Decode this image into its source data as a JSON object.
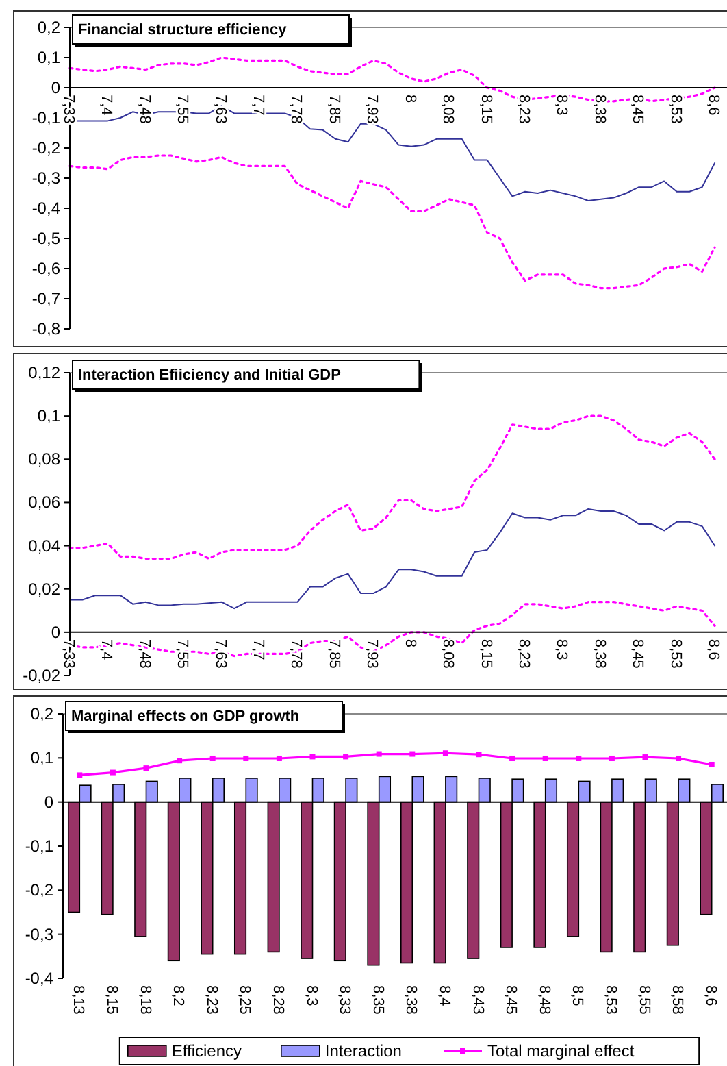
{
  "chart_data": [
    {
      "type": "line",
      "title": "Financial structure efficiency",
      "categories": [
        "7,33",
        null,
        null,
        "7,4",
        null,
        null,
        "7,48",
        null,
        null,
        "7,55",
        null,
        null,
        "7,63",
        null,
        null,
        "7,7",
        null,
        null,
        "7,78",
        null,
        null,
        "7,85",
        null,
        null,
        "7,93",
        null,
        null,
        "8",
        null,
        null,
        "8,08",
        null,
        null,
        "8,15",
        null,
        null,
        "8,23",
        null,
        null,
        "8,3",
        null,
        null,
        "8,38",
        null,
        null,
        "8,45",
        null,
        null,
        "8,53",
        null,
        null,
        "8,6"
      ],
      "ylim": [
        -0.8,
        0.2
      ],
      "yticks": [
        {
          "value": -0.8,
          "label": "-0,8"
        },
        {
          "value": -0.7,
          "label": "-0,7"
        },
        {
          "value": -0.6,
          "label": "-0,6"
        },
        {
          "value": -0.5,
          "label": "-0,5"
        },
        {
          "value": -0.4,
          "label": "-0,4"
        },
        {
          "value": -0.3,
          "label": "-0,3"
        },
        {
          "value": -0.2,
          "label": "-0,2"
        },
        {
          "value": -0.1,
          "label": "-0,1"
        },
        {
          "value": 0,
          "label": "0"
        },
        {
          "value": 0.1,
          "label": "0,1"
        },
        {
          "value": 0.2,
          "label": "0,2"
        }
      ],
      "series": [
        {
          "color": "#ff00ff",
          "line_style": "dotted",
          "values": [
            0.065,
            0.06,
            0.055,
            0.06,
            0.07,
            0.065,
            0.06,
            0.075,
            0.08,
            0.08,
            0.075,
            0.085,
            0.1,
            0.095,
            0.09,
            0.09,
            0.09,
            0.09,
            0.07,
            0.055,
            0.05,
            0.045,
            0.045,
            0.07,
            0.09,
            0.08,
            0.05,
            0.03,
            0.02,
            0.03,
            0.05,
            0.06,
            0.04,
            0.0,
            -0.01,
            -0.03,
            -0.04,
            -0.035,
            -0.03,
            -0.025,
            -0.03,
            -0.04,
            -0.045,
            -0.045,
            -0.04,
            -0.035,
            -0.045,
            -0.04,
            -0.035,
            -0.03,
            -0.02,
            0.0
          ]
        },
        {
          "color": "#333399",
          "line_style": "solid",
          "values": [
            -0.11,
            -0.11,
            -0.11,
            -0.11,
            -0.1,
            -0.08,
            -0.09,
            -0.08,
            -0.08,
            -0.08,
            -0.085,
            -0.085,
            -0.06,
            -0.085,
            -0.085,
            -0.085,
            -0.085,
            -0.085,
            -0.1,
            -0.137,
            -0.14,
            -0.17,
            -0.18,
            -0.12,
            -0.12,
            -0.14,
            -0.19,
            -0.195,
            -0.19,
            -0.17,
            -0.17,
            -0.17,
            -0.24,
            -0.24,
            -0.3,
            -0.36,
            -0.345,
            -0.35,
            -0.34,
            -0.35,
            -0.36,
            -0.375,
            -0.37,
            -0.365,
            -0.35,
            -0.33,
            -0.33,
            -0.31,
            -0.345,
            -0.345,
            -0.33,
            -0.25
          ]
        },
        {
          "color": "#ff00ff",
          "line_style": "dotted",
          "values": [
            -0.26,
            -0.265,
            -0.265,
            -0.27,
            -0.24,
            -0.23,
            -0.23,
            -0.225,
            -0.225,
            -0.235,
            -0.245,
            -0.24,
            -0.23,
            -0.25,
            -0.26,
            -0.26,
            -0.26,
            -0.26,
            -0.32,
            -0.34,
            -0.36,
            -0.38,
            -0.4,
            -0.31,
            -0.32,
            -0.33,
            -0.37,
            -0.41,
            -0.41,
            -0.39,
            -0.37,
            -0.38,
            -0.39,
            -0.48,
            -0.5,
            -0.58,
            -0.64,
            -0.62,
            -0.62,
            -0.62,
            -0.65,
            -0.655,
            -0.665,
            -0.665,
            -0.66,
            -0.655,
            -0.63,
            -0.6,
            -0.595,
            -0.585,
            -0.61,
            -0.53
          ]
        }
      ]
    },
    {
      "type": "line",
      "title": "Interaction Efiiciency and Initial GDP",
      "categories": [
        "7,33",
        null,
        null,
        "7,4",
        null,
        null,
        "7,48",
        null,
        null,
        "7,55",
        null,
        null,
        "7,63",
        null,
        null,
        "7,7",
        null,
        null,
        "7,78",
        null,
        null,
        "7,85",
        null,
        null,
        "7,93",
        null,
        null,
        "8",
        null,
        null,
        "8,08",
        null,
        null,
        "8,15",
        null,
        null,
        "8,23",
        null,
        null,
        "8,3",
        null,
        null,
        "8,38",
        null,
        null,
        "8,45",
        null,
        null,
        "8,53",
        null,
        null,
        "8,6"
      ],
      "ylim": [
        -0.02,
        0.12
      ],
      "yticks": [
        {
          "value": -0.02,
          "label": "-0,02"
        },
        {
          "value": 0,
          "label": "0"
        },
        {
          "value": 0.02,
          "label": "0,02"
        },
        {
          "value": 0.04,
          "label": "0,04"
        },
        {
          "value": 0.06,
          "label": "0,06"
        },
        {
          "value": 0.08,
          "label": "0,08"
        },
        {
          "value": 0.1,
          "label": "0,1"
        },
        {
          "value": 0.12,
          "label": "0,12"
        }
      ],
      "series": [
        {
          "color": "#ff00ff",
          "line_style": "dotted",
          "values": [
            0.039,
            0.039,
            0.04,
            0.041,
            0.035,
            0.035,
            0.034,
            0.034,
            0.034,
            0.036,
            0.037,
            0.034,
            0.037,
            0.038,
            0.038,
            0.038,
            0.038,
            0.038,
            0.04,
            0.047,
            0.052,
            0.056,
            0.059,
            0.047,
            0.048,
            0.053,
            0.061,
            0.061,
            0.057,
            0.056,
            0.057,
            0.058,
            0.07,
            0.075,
            0.085,
            0.096,
            0.095,
            0.094,
            0.094,
            0.097,
            0.098,
            0.1,
            0.1,
            0.098,
            0.094,
            0.089,
            0.088,
            0.086,
            0.09,
            0.092,
            0.088,
            0.08
          ]
        },
        {
          "color": "#333399",
          "line_style": "solid",
          "values": [
            0.015,
            0.015,
            0.017,
            0.017,
            0.017,
            0.013,
            0.014,
            0.0125,
            0.0125,
            0.013,
            0.013,
            0.0135,
            0.014,
            0.011,
            0.014,
            0.014,
            0.014,
            0.014,
            0.014,
            0.021,
            0.021,
            0.025,
            0.027,
            0.018,
            0.018,
            0.021,
            0.029,
            0.029,
            0.028,
            0.026,
            0.026,
            0.026,
            0.037,
            0.038,
            0.046,
            0.055,
            0.053,
            0.053,
            0.052,
            0.054,
            0.054,
            0.057,
            0.056,
            0.056,
            0.054,
            0.05,
            0.05,
            0.047,
            0.051,
            0.051,
            0.049,
            0.04
          ]
        },
        {
          "color": "#ff00ff",
          "line_style": "dotted",
          "values": [
            -0.006,
            -0.007,
            -0.007,
            -0.006,
            -0.005,
            -0.006,
            -0.007,
            -0.008,
            -0.009,
            -0.009,
            -0.009,
            -0.01,
            -0.009,
            -0.011,
            -0.01,
            -0.01,
            -0.01,
            -0.01,
            -0.009,
            -0.005,
            -0.004,
            -0.004,
            -0.002,
            -0.007,
            -0.009,
            -0.006,
            -0.002,
            0.0,
            0.0,
            -0.002,
            -0.003,
            -0.005,
            0.001,
            0.003,
            0.004,
            0.008,
            0.013,
            0.013,
            0.012,
            0.011,
            0.012,
            0.014,
            0.014,
            0.014,
            0.013,
            0.012,
            0.011,
            0.01,
            0.012,
            0.011,
            0.01,
            0.003
          ]
        }
      ]
    },
    {
      "type": "bar",
      "title": "Marginal effects on GDP growth",
      "categories": [
        "8,13",
        "8,15",
        "8,18",
        "8,2",
        "8,23",
        "8,25",
        "8,28",
        "8,3",
        "8,33",
        "8,35",
        "8,38",
        "8,4",
        "8,43",
        "8,45",
        "8,48",
        "8,5",
        "8,53",
        "8,55",
        "8,58",
        "8,6"
      ],
      "ylim": [
        -0.4,
        0.2
      ],
      "yticks": [
        {
          "value": -0.4,
          "label": "-0,4"
        },
        {
          "value": -0.3,
          "label": "-0,3"
        },
        {
          "value": -0.2,
          "label": "-0,2"
        },
        {
          "value": -0.1,
          "label": "-0,1"
        },
        {
          "value": 0,
          "label": "0"
        },
        {
          "value": 0.1,
          "label": "0,1"
        },
        {
          "value": 0.2,
          "label": "0,2"
        }
      ],
      "legend": "bottom",
      "series": [
        {
          "name": "Efficiency",
          "color": "#993366",
          "values": [
            -0.25,
            -0.255,
            -0.305,
            -0.36,
            -0.345,
            -0.345,
            -0.34,
            -0.355,
            -0.36,
            -0.37,
            -0.365,
            -0.365,
            -0.355,
            -0.33,
            -0.33,
            -0.305,
            -0.34,
            -0.34,
            -0.325,
            -0.255
          ]
        },
        {
          "name": "Interaction",
          "color": "#9999ff",
          "values": [
            0.038,
            0.04,
            0.047,
            0.054,
            0.054,
            0.054,
            0.054,
            0.054,
            0.054,
            0.058,
            0.058,
            0.058,
            0.054,
            0.052,
            0.052,
            0.047,
            0.052,
            0.052,
            0.052,
            0.04
          ]
        },
        {
          "name": "Total marginal effect",
          "type": "line",
          "color": "#ff00ff",
          "marker": "square",
          "values": [
            0.061,
            0.067,
            0.077,
            0.094,
            0.099,
            0.099,
            0.099,
            0.103,
            0.103,
            0.109,
            0.109,
            0.111,
            0.108,
            0.099,
            0.099,
            0.099,
            0.099,
            0.102,
            0.099,
            0.085
          ]
        }
      ]
    }
  ]
}
